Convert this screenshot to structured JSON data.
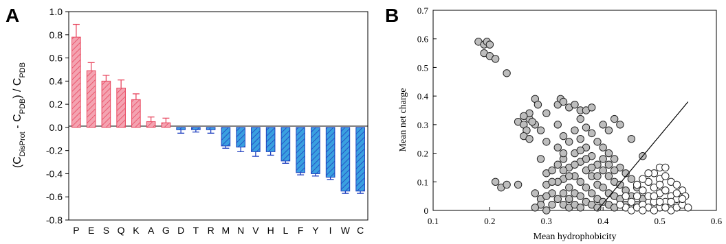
{
  "chart_data": [
    {
      "panel_label": "A",
      "type": "bar",
      "ylabel": "(C_DisProt - C_PDB) / C_PDB",
      "ylabel_parts": [
        "(C",
        "DisProt",
        " - C",
        "PDB",
        ") / C",
        "PDB"
      ],
      "categories": [
        "P",
        "E",
        "S",
        "Q",
        "K",
        "A",
        "G",
        "D",
        "T",
        "R",
        "M",
        "N",
        "V",
        "H",
        "L",
        "F",
        "Y",
        "I",
        "W",
        "C"
      ],
      "values": [
        0.78,
        0.49,
        0.4,
        0.34,
        0.24,
        0.05,
        0.04,
        -0.02,
        -0.02,
        -0.02,
        -0.16,
        -0.17,
        -0.21,
        -0.21,
        -0.29,
        -0.39,
        -0.4,
        -0.43,
        -0.55,
        -0.55
      ],
      "errors": [
        0.11,
        0.07,
        0.05,
        0.07,
        0.05,
        0.04,
        0.04,
        0.03,
        0.02,
        0.03,
        0.02,
        0.04,
        0.04,
        0.03,
        0.02,
        0.02,
        0.02,
        0.02,
        0.02,
        0.02
      ],
      "ylim": [
        -0.8,
        1.0
      ],
      "yticks": [
        "1.0",
        "0.8",
        "0.6",
        "0.4",
        "0.2",
        "0.0",
        "-0.2",
        "-0.4",
        "-0.6",
        "-0.8"
      ],
      "colors": {
        "positive_fill": "#f4a3b1",
        "positive_stroke": "#e8475f",
        "negative_fill": "#3aa0e0",
        "negative_stroke": "#1f3fbf"
      }
    },
    {
      "panel_label": "B",
      "type": "scatter",
      "xlabel": "Mean hydrophobicity",
      "ylabel": "Mean net charge",
      "xlim": [
        0.1,
        0.6
      ],
      "ylim": [
        0,
        0.7
      ],
      "xticks": [
        "0.1",
        "0.2",
        "0.3",
        "0.4",
        "0.5",
        "0.6"
      ],
      "yticks": [
        "0.7",
        "0.6",
        "0.5",
        "0.4",
        "0.3",
        "0.2",
        "0.1",
        "0"
      ],
      "boundary_line": [
        [
          0.39,
          0.0
        ],
        [
          0.55,
          0.38
        ]
      ],
      "series": [
        {
          "color": "#bdbdbd",
          "points": [
            [
              0.18,
              0.59
            ],
            [
              0.19,
              0.58
            ],
            [
              0.195,
              0.59
            ],
            [
              0.2,
              0.58
            ],
            [
              0.19,
              0.55
            ],
            [
              0.2,
              0.54
            ],
            [
              0.21,
              0.53
            ],
            [
              0.23,
              0.48
            ],
            [
              0.21,
              0.1
            ],
            [
              0.22,
              0.08
            ],
            [
              0.23,
              0.09
            ],
            [
              0.25,
              0.09
            ],
            [
              0.25,
              0.31
            ],
            [
              0.26,
              0.3
            ],
            [
              0.265,
              0.28
            ],
            [
              0.27,
              0.32
            ],
            [
              0.26,
              0.26
            ],
            [
              0.27,
              0.25
            ],
            [
              0.28,
              0.3
            ],
            [
              0.28,
              0.39
            ],
            [
              0.285,
              0.37
            ],
            [
              0.27,
              0.34
            ],
            [
              0.275,
              0.31
            ],
            [
              0.26,
              0.33
            ],
            [
              0.29,
              0.18
            ],
            [
              0.3,
              0.24
            ],
            [
              0.29,
              0.28
            ],
            [
              0.3,
              0.34
            ],
            [
              0.32,
              0.37
            ],
            [
              0.325,
              0.39
            ],
            [
              0.33,
              0.38
            ],
            [
              0.34,
              0.36
            ],
            [
              0.35,
              0.37
            ],
            [
              0.36,
              0.35
            ],
            [
              0.37,
              0.35
            ],
            [
              0.38,
              0.36
            ],
            [
              0.4,
              0.3
            ],
            [
              0.41,
              0.28
            ],
            [
              0.42,
              0.32
            ],
            [
              0.43,
              0.3
            ],
            [
              0.45,
              0.25
            ],
            [
              0.28,
              0.06
            ],
            [
              0.29,
              0.04
            ],
            [
              0.3,
              0.09
            ],
            [
              0.3,
              0.13
            ],
            [
              0.31,
              0.06
            ],
            [
              0.31,
              0.14
            ],
            [
              0.32,
              0.22
            ],
            [
              0.32,
              0.3
            ],
            [
              0.33,
              0.26
            ],
            [
              0.33,
              0.18
            ],
            [
              0.33,
              0.11
            ],
            [
              0.33,
              0.06
            ],
            [
              0.33,
              0.02
            ],
            [
              0.34,
              0.24
            ],
            [
              0.34,
              0.15
            ],
            [
              0.34,
              0.08
            ],
            [
              0.34,
              0.04
            ],
            [
              0.34,
              0.01
            ],
            [
              0.35,
              0.28
            ],
            [
              0.35,
              0.2
            ],
            [
              0.35,
              0.12
            ],
            [
              0.35,
              0.06
            ],
            [
              0.35,
              0.02
            ],
            [
              0.36,
              0.32
            ],
            [
              0.36,
              0.25
            ],
            [
              0.36,
              0.17
            ],
            [
              0.36,
              0.1
            ],
            [
              0.36,
              0.05
            ],
            [
              0.36,
              0.01
            ],
            [
              0.37,
              0.29
            ],
            [
              0.37,
              0.22
            ],
            [
              0.37,
              0.14
            ],
            [
              0.37,
              0.08
            ],
            [
              0.37,
              0.03
            ],
            [
              0.38,
              0.27
            ],
            [
              0.38,
              0.19
            ],
            [
              0.38,
              0.12
            ],
            [
              0.38,
              0.06
            ],
            [
              0.38,
              0.02
            ],
            [
              0.39,
              0.24
            ],
            [
              0.39,
              0.16
            ],
            [
              0.39,
              0.09
            ],
            [
              0.39,
              0.04
            ],
            [
              0.39,
              0.01
            ],
            [
              0.4,
              0.22
            ],
            [
              0.4,
              0.14
            ],
            [
              0.4,
              0.08
            ],
            [
              0.4,
              0.03
            ],
            [
              0.41,
              0.2
            ],
            [
              0.41,
              0.12
            ],
            [
              0.41,
              0.06
            ],
            [
              0.41,
              0.02
            ],
            [
              0.42,
              0.18
            ],
            [
              0.42,
              0.1
            ],
            [
              0.42,
              0.05
            ],
            [
              0.42,
              0.01
            ],
            [
              0.43,
              0.15
            ],
            [
              0.43,
              0.09
            ],
            [
              0.43,
              0.04
            ],
            [
              0.44,
              0.13
            ],
            [
              0.44,
              0.07
            ],
            [
              0.44,
              0.02
            ],
            [
              0.45,
              0.11
            ],
            [
              0.45,
              0.05
            ],
            [
              0.46,
              0.08
            ],
            [
              0.46,
              0.02
            ],
            [
              0.47,
              0.19
            ],
            [
              0.47,
              0.04
            ],
            [
              0.32,
              0.1
            ],
            [
              0.32,
              0.16
            ],
            [
              0.33,
              0.2
            ],
            [
              0.34,
              0.12
            ],
            [
              0.35,
              0.16
            ],
            [
              0.36,
              0.21
            ],
            [
              0.37,
              0.18
            ],
            [
              0.38,
              0.15
            ],
            [
              0.39,
              0.12
            ],
            [
              0.4,
              0.18
            ],
            [
              0.41,
              0.16
            ],
            [
              0.42,
              0.14
            ],
            [
              0.29,
              0.02
            ],
            [
              0.28,
              0.01
            ],
            [
              0.31,
              0.02
            ],
            [
              0.32,
              0.04
            ],
            [
              0.3,
              0.05
            ],
            [
              0.3,
              0.0
            ],
            [
              0.31,
              0.1
            ],
            [
              0.33,
              0.14
            ]
          ]
        },
        {
          "color": "#ffffff",
          "points": [
            [
              0.44,
              0.01
            ],
            [
              0.45,
              0.03
            ],
            [
              0.45,
              0.0
            ],
            [
              0.46,
              0.05
            ],
            [
              0.46,
              0.01
            ],
            [
              0.47,
              0.07
            ],
            [
              0.47,
              0.02
            ],
            [
              0.48,
              0.1
            ],
            [
              0.48,
              0.05
            ],
            [
              0.48,
              0.01
            ],
            [
              0.49,
              0.13
            ],
            [
              0.49,
              0.08
            ],
            [
              0.49,
              0.03
            ],
            [
              0.5,
              0.15
            ],
            [
              0.5,
              0.11
            ],
            [
              0.5,
              0.06
            ],
            [
              0.5,
              0.01
            ],
            [
              0.51,
              0.12
            ],
            [
              0.51,
              0.07
            ],
            [
              0.51,
              0.03
            ],
            [
              0.52,
              0.1
            ],
            [
              0.52,
              0.05
            ],
            [
              0.52,
              0.0
            ],
            [
              0.53,
              0.09
            ],
            [
              0.53,
              0.04
            ],
            [
              0.53,
              0.01
            ],
            [
              0.54,
              0.07
            ],
            [
              0.54,
              0.02
            ],
            [
              0.545,
              0.05
            ],
            [
              0.55,
              0.01
            ],
            [
              0.47,
              0.11
            ],
            [
              0.46,
              0.09
            ],
            [
              0.49,
              0.0
            ],
            [
              0.51,
              0.01
            ],
            [
              0.52,
              0.03
            ],
            [
              0.44,
              0.05
            ],
            [
              0.43,
              0.02
            ],
            [
              0.47,
              0.0
            ],
            [
              0.48,
              0.13
            ],
            [
              0.5,
              0.09
            ],
            [
              0.51,
              0.15
            ],
            [
              0.53,
              0.06
            ],
            [
              0.54,
              0.04
            ],
            [
              0.49,
              0.05
            ],
            [
              0.5,
              0.03
            ]
          ]
        }
      ]
    }
  ]
}
